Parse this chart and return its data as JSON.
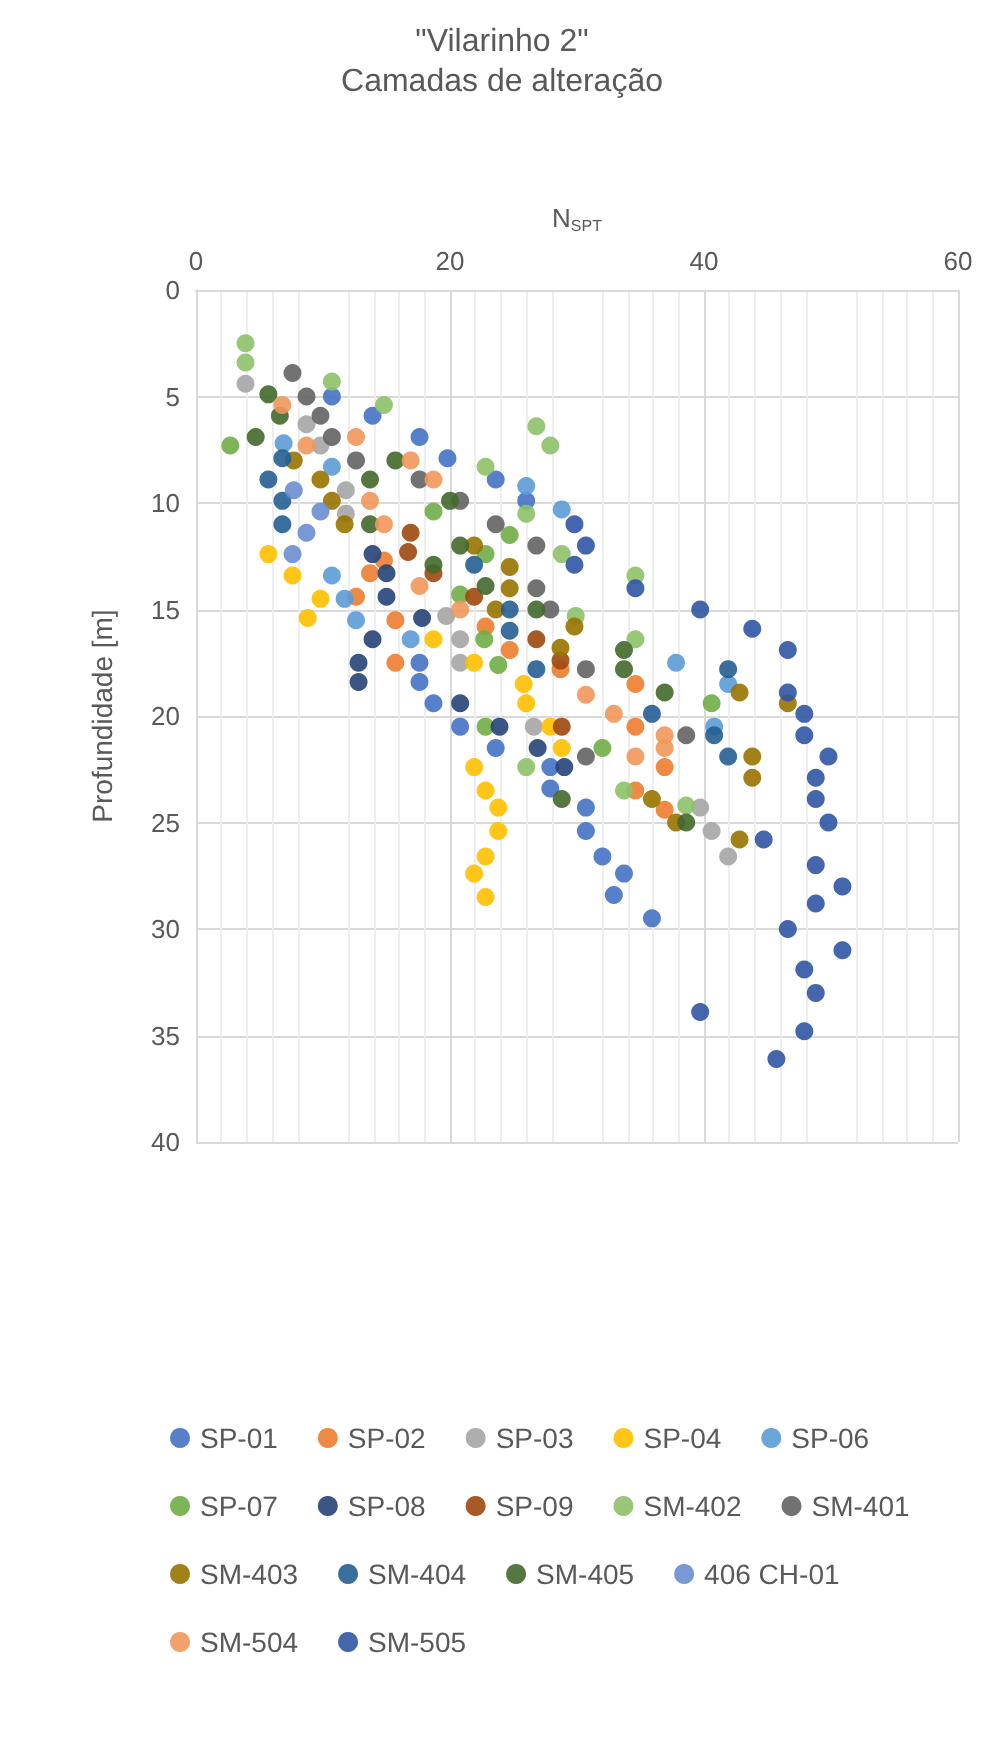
{
  "chart_data": {
    "type": "scatter",
    "title": "\"Vilarinho 2\"",
    "subtitle": "Camadas de alteração",
    "xlabel": "N$_{SPT}$",
    "ylabel": "Profundidade [m]",
    "xlim": [
      0,
      60
    ],
    "xticks": [
      0,
      20,
      40,
      60
    ],
    "ylim": [
      40,
      0
    ],
    "yticks": [
      0,
      5,
      10,
      15,
      20,
      25,
      30,
      35,
      40
    ],
    "grid": true,
    "legend": "bottom",
    "marker": "circle",
    "series": [
      {
        "name": "SP-01",
        "color": "#4472c4",
        "x": [
          10.7,
          13.9,
          17.6,
          19.8,
          23.6,
          26.0,
          17.6,
          17.6,
          18.7,
          20.8,
          23.6,
          27.9,
          27.9,
          30.7,
          30.7,
          32.0,
          33.7,
          32.9,
          35.9
        ],
        "values": [
          5.0,
          5.9,
          6.9,
          7.9,
          8.9,
          9.9,
          17.5,
          18.4,
          19.4,
          20.5,
          21.5,
          22.4,
          23.4,
          24.3,
          25.4,
          26.6,
          27.4,
          28.4,
          29.5
        ]
      },
      {
        "name": "SP-02",
        "color": "#ed7d31",
        "x": [
          13.7,
          14.8,
          12.6,
          15.7,
          15.7,
          22.8,
          24.7,
          28.7,
          34.6,
          34.6,
          36.9,
          34.6,
          36.9
        ],
        "values": [
          13.3,
          12.7,
          14.4,
          15.5,
          17.5,
          15.8,
          16.9,
          17.8,
          18.5,
          20.5,
          22.4,
          23.5,
          24.4
        ]
      },
      {
        "name": "SP-03",
        "color": "#a5a5a5",
        "x": [
          3.9,
          8.7,
          9.8,
          11.8,
          11.8,
          19.7,
          20.8,
          20.8,
          26.6,
          39.7,
          40.6,
          41.9
        ],
        "values": [
          4.4,
          6.3,
          7.3,
          9.4,
          10.5,
          15.3,
          16.4,
          17.5,
          20.5,
          24.3,
          25.4,
          26.6
        ]
      },
      {
        "name": "SP-04",
        "color": "#ffc000",
        "x": [
          5.7,
          7.6,
          9.8,
          8.8,
          18.7,
          21.9,
          25.8,
          26.0,
          27.9,
          28.8,
          21.9,
          22.8,
          23.8,
          23.8,
          22.8,
          21.9,
          22.8
        ],
        "values": [
          12.4,
          13.4,
          14.5,
          15.4,
          16.4,
          17.5,
          18.5,
          19.4,
          20.5,
          21.5,
          22.4,
          23.5,
          24.3,
          25.4,
          26.6,
          27.4,
          28.5
        ]
      },
      {
        "name": "SP-06",
        "color": "#5b9bd5",
        "x": [
          6.9,
          10.7,
          10.7,
          11.7,
          12.6,
          16.9,
          26.0,
          28.8,
          37.8,
          41.9,
          40.8
        ],
        "values": [
          7.2,
          8.3,
          13.4,
          14.5,
          15.5,
          16.4,
          9.2,
          10.3,
          17.5,
          18.5,
          20.5
        ]
      },
      {
        "name": "SP-07",
        "color": "#70ad47",
        "x": [
          2.7,
          18.7,
          22.8,
          24.7,
          20.8,
          22.7,
          23.8,
          22.8,
          40.6,
          32.0
        ],
        "values": [
          7.3,
          10.4,
          12.4,
          11.5,
          14.3,
          16.4,
          17.6,
          20.5,
          19.4,
          21.5
        ]
      },
      {
        "name": "SP-08",
        "color": "#264478",
        "x": [
          13.9,
          15.0,
          15.0,
          17.8,
          13.9,
          12.8,
          12.8,
          20.8,
          23.9,
          26.9,
          29.0
        ],
        "values": [
          12.4,
          13.3,
          14.4,
          15.4,
          16.4,
          17.5,
          18.4,
          19.4,
          20.5,
          21.5,
          22.4
        ]
      },
      {
        "name": "SP-09",
        "color": "#9e480e",
        "x": [
          16.9,
          16.7,
          18.7,
          21.9,
          26.8,
          28.7,
          28.8
        ],
        "values": [
          11.4,
          12.3,
          13.3,
          14.4,
          16.4,
          17.4,
          20.5
        ]
      },
      {
        "name": "SM-402",
        "color": "#8cc168",
        "x": [
          3.9,
          3.9,
          10.7,
          14.8,
          26.8,
          27.9,
          22.8,
          26.0,
          28.8,
          29.9,
          34.6,
          34.6,
          26.0,
          33.7,
          38.6
        ],
        "values": [
          2.5,
          3.4,
          4.3,
          5.4,
          6.4,
          7.3,
          8.3,
          10.5,
          12.4,
          15.3,
          13.4,
          16.4,
          22.4,
          23.5,
          24.2
        ]
      },
      {
        "name": "SM-401",
        "color": "#636363",
        "x": [
          7.6,
          8.7,
          9.8,
          10.7,
          12.6,
          17.6,
          20.8,
          23.6,
          26.8,
          26.8,
          27.9,
          30.7,
          38.6,
          30.7
        ],
        "values": [
          3.9,
          5.0,
          5.9,
          6.9,
          8.0,
          8.9,
          9.9,
          11.0,
          12.0,
          14.0,
          15.0,
          17.8,
          20.9,
          21.9
        ]
      },
      {
        "name": "SM-403",
        "color": "#997300",
        "x": [
          7.7,
          9.8,
          10.7,
          11.7,
          21.9,
          24.7,
          24.7,
          23.6,
          29.8,
          28.7,
          42.8,
          46.6,
          43.8,
          43.8,
          35.9,
          37.8,
          42.8
        ],
        "values": [
          8.0,
          8.9,
          9.9,
          11.0,
          12.0,
          13.0,
          14.0,
          15.0,
          15.8,
          16.8,
          18.9,
          19.4,
          21.9,
          22.9,
          23.9,
          25.0,
          25.8
        ]
      },
      {
        "name": "SM-404",
        "color": "#255e91",
        "x": [
          5.7,
          6.8,
          6.8,
          6.8,
          21.9,
          24.7,
          24.7,
          26.8,
          41.9,
          35.9,
          40.8,
          41.9
        ],
        "values": [
          8.9,
          7.9,
          9.9,
          11.0,
          12.9,
          15.0,
          16.0,
          17.8,
          17.8,
          19.9,
          20.9,
          21.9
        ]
      },
      {
        "name": "SM-405",
        "color": "#43682b",
        "x": [
          5.7,
          6.6,
          4.7,
          15.7,
          13.7,
          20.0,
          13.7,
          18.7,
          20.8,
          22.8,
          26.8,
          33.7,
          33.7,
          36.9,
          28.8,
          38.6
        ],
        "values": [
          4.9,
          5.9,
          6.9,
          8.0,
          8.9,
          9.9,
          11.0,
          12.9,
          12.0,
          13.9,
          15.0,
          16.9,
          17.8,
          18.9,
          23.9,
          25.0
        ]
      },
      {
        "name": "406 CH-01",
        "color": "#698ed0",
        "x": [
          7.7,
          9.8,
          8.7,
          7.6
        ],
        "values": [
          9.4,
          10.4,
          11.4,
          12.4
        ]
      },
      {
        "name": "SM-504",
        "color": "#f1975a",
        "x": [
          6.8,
          12.6,
          8.7,
          16.9,
          18.7,
          13.7,
          14.8,
          17.6,
          20.8,
          30.7,
          32.9,
          36.9,
          36.9,
          34.6
        ],
        "values": [
          5.4,
          6.9,
          7.3,
          8.0,
          8.9,
          9.9,
          11.0,
          13.9,
          15.0,
          19.0,
          19.9,
          20.9,
          21.5,
          21.9
        ]
      },
      {
        "name": "SM-505",
        "color": "#2f55a4",
        "x": [
          29.8,
          30.7,
          29.8,
          34.6,
          39.7,
          43.8,
          46.6,
          46.6,
          47.9,
          47.9,
          49.8,
          48.8,
          48.8,
          49.8,
          44.7,
          48.8,
          50.9,
          48.8,
          46.6,
          50.9,
          47.9,
          48.8,
          39.7,
          47.9,
          45.7
        ],
        "values": [
          11.0,
          12.0,
          12.9,
          14.0,
          15.0,
          15.9,
          16.9,
          18.9,
          19.9,
          20.9,
          21.9,
          22.9,
          23.9,
          25.0,
          25.8,
          27.0,
          28.0,
          28.8,
          30.0,
          31.0,
          31.9,
          33.0,
          33.9,
          34.8,
          36.1
        ]
      }
    ]
  }
}
